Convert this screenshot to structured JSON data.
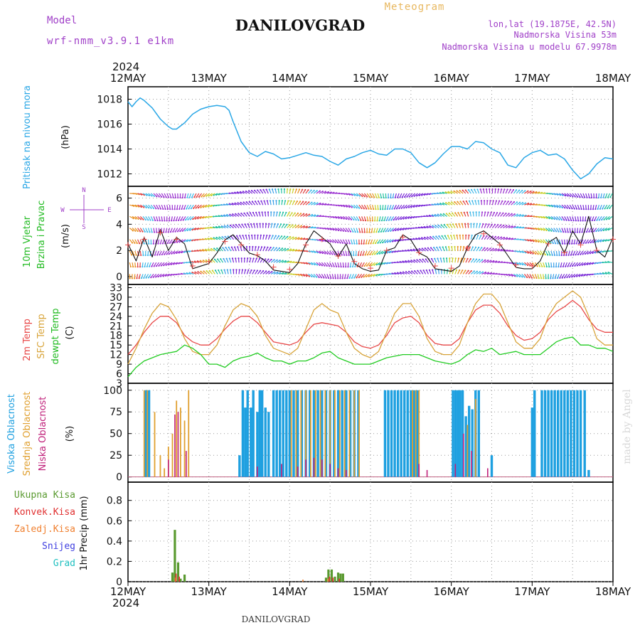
{
  "header": {
    "model_label": "Model",
    "model_name": "wrf-nmm_v3.9.1 e1km",
    "title": "DANILOVGRAD",
    "subtitle": "Meteogram",
    "coords": "lon,lat (19.1875E, 42.5N)",
    "elevation": "Nadmorska Visina 53m",
    "model_elevation": "Nadmorska Visina u modelu 67.9978m",
    "footer_title": "DANILOVGRAD",
    "watermark": "made by Angel"
  },
  "colors": {
    "pressure": "#2aa7e6",
    "wind_label": "#22bb22",
    "purple": "#a040c8",
    "temp2m": "#e84848",
    "sfc": "#d8a43a",
    "dewpt": "#22cc22",
    "cloud_high": "#1ea0e0",
    "cloud_mid": "#e0a030",
    "cloud_low": "#c0207a",
    "rain": "#5a9a30",
    "conv": "#e03030",
    "frozen": "#f08030",
    "snow": "#4040e0",
    "grad": "#20c0c0"
  },
  "time_axis": {
    "year": "2024",
    "ticks": [
      "12MAY",
      "13MAY",
      "14MAY",
      "15MAY",
      "16MAY",
      "17MAY",
      "18MAY"
    ]
  },
  "chart_data": [
    {
      "type": "line",
      "panel": "pressure",
      "ylabel_rot": "Pritisak na nivou mora",
      "unit": "(hPa)",
      "ylim": [
        1011,
        1019
      ],
      "yticks": [
        "1012",
        "1014",
        "1016",
        "1018"
      ],
      "x_days": [
        0,
        0.05,
        0.1,
        0.15,
        0.2,
        0.3,
        0.4,
        0.5,
        0.55,
        0.6,
        0.7,
        0.8,
        0.9,
        1.0,
        1.1,
        1.2,
        1.25,
        1.3,
        1.4,
        1.5,
        1.6,
        1.7,
        1.8,
        1.9,
        2.0,
        2.1,
        2.2,
        2.3,
        2.4,
        2.5,
        2.6,
        2.7,
        2.8,
        2.9,
        3.0,
        3.1,
        3.2,
        3.3,
        3.4,
        3.5,
        3.6,
        3.7,
        3.8,
        3.9,
        4.0,
        4.1,
        4.2,
        4.3,
        4.4,
        4.5,
        4.6,
        4.7,
        4.8,
        4.9,
        5.0,
        5.1,
        5.2,
        5.3,
        5.4,
        5.5,
        5.6,
        5.7,
        5.8,
        5.9,
        6.0
      ],
      "series": [
        {
          "values": [
            1017.8,
            1017.4,
            1017.8,
            1018.1,
            1017.9,
            1017.3,
            1016.4,
            1015.8,
            1015.6,
            1015.6,
            1016.1,
            1016.8,
            1017.2,
            1017.4,
            1017.5,
            1017.4,
            1017.1,
            1016.2,
            1014.6,
            1013.7,
            1013.4,
            1013.8,
            1013.6,
            1013.2,
            1013.3,
            1013.5,
            1013.7,
            1013.5,
            1013.4,
            1013.0,
            1012.7,
            1013.2,
            1013.4,
            1013.7,
            1013.9,
            1013.6,
            1013.5,
            1014.0,
            1014.0,
            1013.7,
            1012.9,
            1012.5,
            1012.9,
            1013.6,
            1014.2,
            1014.2,
            1014.0,
            1014.6,
            1014.5,
            1014.0,
            1013.7,
            1012.7,
            1012.5,
            1013.3,
            1013.7,
            1013.9,
            1013.5,
            1013.6,
            1013.2,
            1012.3,
            1011.6,
            1012.0,
            1012.8,
            1013.3,
            1013.2
          ]
        }
      ]
    },
    {
      "type": "line",
      "panel": "wind",
      "ylabel_rot_1": "10m Vjetar",
      "ylabel_rot_2": "Brzina i Pravac",
      "unit": "(m/s)",
      "compass_n": "N",
      "compass_s": "S",
      "compass_e": "E",
      "compass_w": "W",
      "ylim": [
        -0.6,
        6.9
      ],
      "yticks": [
        "0",
        "2",
        "4",
        "6"
      ],
      "x_days": [
        0,
        0.1,
        0.2,
        0.3,
        0.4,
        0.5,
        0.6,
        0.7,
        0.8,
        0.9,
        1.0,
        1.1,
        1.2,
        1.3,
        1.4,
        1.5,
        1.6,
        1.7,
        1.8,
        1.9,
        2.0,
        2.1,
        2.2,
        2.3,
        2.4,
        2.5,
        2.6,
        2.7,
        2.8,
        2.9,
        3.0,
        3.1,
        3.2,
        3.3,
        3.4,
        3.5,
        3.6,
        3.7,
        3.8,
        3.9,
        4.0,
        4.1,
        4.2,
        4.3,
        4.4,
        4.5,
        4.6,
        4.7,
        4.8,
        4.9,
        5.0,
        5.1,
        5.2,
        5.3,
        5.4,
        5.5,
        5.6,
        5.7,
        5.8,
        5.9,
        6.0
      ],
      "series": [
        {
          "name": "speed",
          "values": [
            2.5,
            1.2,
            3.0,
            1.5,
            3.6,
            2.0,
            3.0,
            2.5,
            0.6,
            0.8,
            1.0,
            1.8,
            2.8,
            3.2,
            2.5,
            1.8,
            1.6,
            1.2,
            0.5,
            0.4,
            0.3,
            1.0,
            2.5,
            3.5,
            3.0,
            2.5,
            1.5,
            2.5,
            1.0,
            0.6,
            0.4,
            0.5,
            2.0,
            2.2,
            3.2,
            2.8,
            1.8,
            1.5,
            0.6,
            0.5,
            0.4,
            0.8,
            2.2,
            3.2,
            3.5,
            3.0,
            2.5,
            1.6,
            0.7,
            0.6,
            0.6,
            1.2,
            2.6,
            3.0,
            1.8,
            3.5,
            2.5,
            4.6,
            2.0,
            1.5,
            3.0
          ]
        }
      ]
    },
    {
      "type": "line",
      "panel": "temperature",
      "ylabel_rot_1": "2m Temp",
      "ylabel_rot_2": "SFC Temp",
      "ylabel_rot_3": "dewpt Temp",
      "unit": "(C)",
      "ylim": [
        3,
        34
      ],
      "yticks": [
        "3",
        "6",
        "9",
        "12",
        "15",
        "18",
        "21",
        "24",
        "27",
        "30",
        "33"
      ],
      "x_days": [
        0,
        0.1,
        0.2,
        0.3,
        0.4,
        0.5,
        0.6,
        0.7,
        0.8,
        0.9,
        1.0,
        1.1,
        1.2,
        1.3,
        1.4,
        1.5,
        1.6,
        1.7,
        1.8,
        1.9,
        2.0,
        2.1,
        2.2,
        2.3,
        2.4,
        2.5,
        2.6,
        2.7,
        2.8,
        2.9,
        3.0,
        3.1,
        3.2,
        3.3,
        3.4,
        3.5,
        3.6,
        3.7,
        3.8,
        3.9,
        4.0,
        4.1,
        4.2,
        4.3,
        4.4,
        4.5,
        4.6,
        4.7,
        4.8,
        4.9,
        5.0,
        5.1,
        5.2,
        5.3,
        5.4,
        5.5,
        5.6,
        5.7,
        5.8,
        5.9,
        6.0
      ],
      "series": [
        {
          "name": "2m Temp",
          "values": [
            12,
            15,
            19,
            22,
            24,
            24,
            22,
            18,
            16,
            15,
            15,
            17,
            20,
            22.5,
            24,
            24,
            22,
            19,
            16,
            15.5,
            15,
            16,
            19,
            21.5,
            22,
            21.5,
            21,
            19,
            16,
            14.5,
            14,
            15,
            18,
            22,
            23.5,
            24,
            22,
            18,
            15.5,
            15,
            15,
            17,
            22,
            26,
            27.5,
            27.5,
            25,
            21,
            18,
            16.5,
            17,
            19,
            23,
            25.5,
            27,
            29,
            27,
            23,
            20,
            19,
            19
          ]
        },
        {
          "name": "SFC Temp",
          "values": [
            9,
            14,
            20,
            25,
            28,
            27,
            23,
            17,
            13,
            12,
            12,
            15,
            21,
            26,
            28,
            27,
            24,
            18,
            14,
            13,
            12,
            14,
            20,
            26,
            28,
            26,
            25,
            19,
            14,
            12,
            11,
            13,
            19,
            25,
            28,
            28,
            24,
            17,
            13,
            12,
            12,
            15,
            22,
            28,
            31,
            31,
            28,
            22,
            16,
            14,
            14,
            17,
            24,
            28,
            30,
            32,
            30,
            24,
            17,
            15,
            15
          ]
        },
        {
          "name": "dewpt Temp",
          "values": [
            5,
            8,
            10,
            11,
            12,
            12.5,
            13,
            15,
            14,
            12,
            9,
            9,
            8,
            10,
            11,
            11.5,
            12.5,
            11,
            10,
            10,
            9,
            10,
            10,
            11,
            12.5,
            13,
            11,
            10,
            9,
            9,
            9,
            10,
            11,
            11.5,
            12,
            12,
            12,
            11,
            10,
            9.5,
            9,
            10,
            12,
            13.5,
            13,
            14,
            12,
            12.5,
            13,
            12,
            12,
            12,
            14,
            16,
            17,
            17.5,
            15,
            15,
            14,
            14,
            13
          ]
        }
      ]
    },
    {
      "type": "bar",
      "panel": "clouds",
      "ylabel_rot_1": "Visoka Oblacnost",
      "ylabel_rot_2": "Srednja Oblacnost",
      "ylabel_rot_3": "Niska Oblacnost",
      "unit": "(%)",
      "ylim": [
        -6,
        108
      ],
      "yticks": [
        "0",
        "25",
        "50",
        "75",
        "100"
      ],
      "series": [
        {
          "name": "Visoka Oblacnost",
          "x_days": [
            0.22,
            0.24,
            0.26,
            1.38,
            1.42,
            1.45,
            1.48,
            1.52,
            1.55,
            1.6,
            1.63,
            1.66,
            1.7,
            1.74,
            1.8,
            1.84,
            1.88,
            1.92,
            1.96,
            2.0,
            2.05,
            2.1,
            2.15,
            2.2,
            2.25,
            2.3,
            2.35,
            2.4,
            2.45,
            2.5,
            2.55,
            2.6,
            2.65,
            2.7,
            2.75,
            2.8,
            2.85,
            3.18,
            3.22,
            3.26,
            3.3,
            3.34,
            3.38,
            3.42,
            3.46,
            3.5,
            3.54,
            3.58,
            4.02,
            4.05,
            4.08,
            4.11,
            4.14,
            4.18,
            4.22,
            4.26,
            4.3,
            4.34,
            4.5,
            5.0,
            5.03,
            5.12,
            5.16,
            5.2,
            5.24,
            5.28,
            5.32,
            5.36,
            5.4,
            5.44,
            5.48,
            5.52,
            5.56,
            5.6,
            5.65,
            5.7
          ],
          "values": [
            100,
            100,
            100,
            25,
            100,
            80,
            100,
            80,
            100,
            75,
            100,
            100,
            80,
            75,
            100,
            100,
            100,
            100,
            100,
            100,
            100,
            100,
            100,
            100,
            100,
            100,
            100,
            100,
            100,
            100,
            100,
            100,
            100,
            100,
            100,
            100,
            100,
            100,
            100,
            100,
            100,
            100,
            100,
            100,
            100,
            100,
            100,
            100,
            100,
            100,
            100,
            100,
            100,
            70,
            82,
            78,
            100,
            100,
            25,
            80,
            100,
            100,
            100,
            100,
            100,
            100,
            100,
            100,
            100,
            100,
            100,
            100,
            100,
            100,
            100,
            8
          ]
        },
        {
          "name": "Srednja Oblacnost",
          "x_days": [
            0.2,
            0.24,
            0.33,
            0.4,
            0.45,
            0.5,
            0.55,
            0.6,
            0.65,
            0.7,
            0.75,
            2.02,
            2.08,
            2.14,
            2.2,
            2.26,
            2.32,
            2.38,
            2.44,
            2.5,
            2.56,
            2.62,
            2.68,
            2.74,
            2.8,
            2.86,
            3.52,
            3.56,
            3.6,
            4.2,
            4.3
          ],
          "values": [
            100,
            100,
            75,
            25,
            10,
            35,
            50,
            88,
            80,
            65,
            100,
            100,
            100,
            100,
            100,
            100,
            100,
            100,
            100,
            100,
            100,
            100,
            100,
            100,
            100,
            100,
            100,
            100,
            100,
            60,
            90
          ]
        },
        {
          "name": "Niska Oblacnost",
          "x_days": [
            0.5,
            0.58,
            0.62,
            0.72,
            1.6,
            1.9,
            2.1,
            2.2,
            2.3,
            2.4,
            2.5,
            2.6,
            2.7,
            3.6,
            3.7,
            4.05,
            4.15,
            4.25,
            4.45
          ],
          "values": [
            20,
            72,
            75,
            30,
            12,
            15,
            12,
            20,
            22,
            20,
            15,
            10,
            8,
            15,
            8,
            15,
            50,
            30,
            10
          ]
        }
      ]
    },
    {
      "type": "bar",
      "panel": "precip",
      "ylabel_rot": "1hr Precip (mm)",
      "legend": [
        "Ukupna Kisa",
        "Konvek.Kisa",
        "Zaledj.Kisa",
        "Snijeg",
        "Grad"
      ],
      "ylim": [
        0,
        0.98
      ],
      "yticks": [
        "0",
        "0.2",
        "0.4",
        "0.6",
        "0.8"
      ],
      "series": [
        {
          "name": "Ukupna Kisa",
          "x_days": [
            0.55,
            0.58,
            0.62,
            0.65,
            0.7,
            2.45,
            2.48,
            2.52,
            2.56,
            2.6,
            2.63,
            2.66
          ],
          "values": [
            0.09,
            0.51,
            0.19,
            0.03,
            0.07,
            0.04,
            0.12,
            0.12,
            0.05,
            0.09,
            0.08,
            0.08
          ]
        },
        {
          "name": "Konvek.Kisa",
          "x_days": [
            0.58,
            0.62,
            2.48,
            2.52,
            2.6
          ],
          "values": [
            0.08,
            0.05,
            0.05,
            0.04,
            0.03
          ]
        },
        {
          "name": "Zaledj.Kisa",
          "x_days": [
            0.57,
            2.15,
            2.46
          ],
          "values": [
            0.04,
            0.02,
            0.03
          ]
        }
      ]
    }
  ]
}
